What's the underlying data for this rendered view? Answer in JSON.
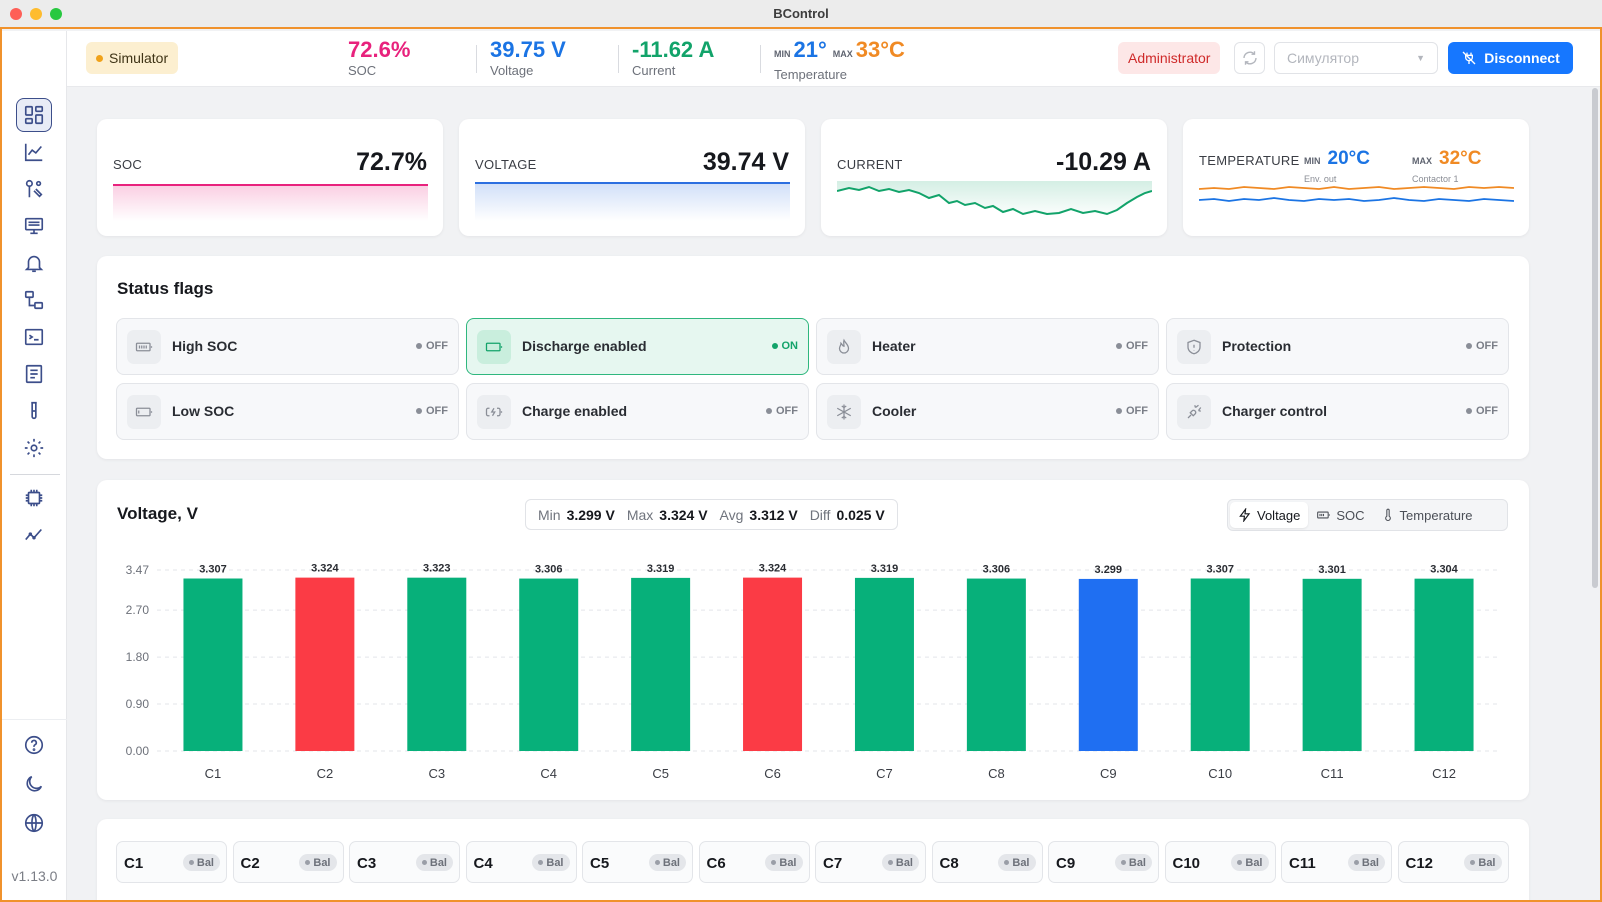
{
  "window": {
    "title": "BControl"
  },
  "sidebar": {
    "items": [
      {
        "icon": "dashboard-icon",
        "active": true
      },
      {
        "icon": "chart-line-icon"
      },
      {
        "icon": "tools-icon"
      },
      {
        "icon": "monitor-icon"
      },
      {
        "icon": "bell-icon"
      },
      {
        "icon": "network-icon"
      },
      {
        "icon": "terminal-icon"
      },
      {
        "icon": "document-icon"
      },
      {
        "icon": "test-tube-icon"
      },
      {
        "icon": "gear-icon"
      },
      {
        "icon": "chip-icon"
      },
      {
        "icon": "trend-icon"
      }
    ],
    "bottom": [
      {
        "icon": "help-icon"
      },
      {
        "icon": "moon-icon"
      },
      {
        "icon": "globe-icon"
      }
    ],
    "version": "v1.13.0"
  },
  "header": {
    "sim_badge": "Simulator",
    "soc": {
      "value": "72.6%",
      "label": "SOC",
      "color": "#e8227d"
    },
    "voltage": {
      "value": "39.75 V",
      "label": "Voltage",
      "color": "#1b74e4"
    },
    "current": {
      "value": "-11.62 A",
      "label": "Current",
      "color": "#12a36a"
    },
    "temperature": {
      "min_label": "MIN",
      "min_value": "21°",
      "max_label": "MAX",
      "max_value": "33°C",
      "label": "Temperature",
      "min_color": "#1b74e4",
      "max_color": "#f08a24"
    },
    "role": "Administrator",
    "port_placeholder": "Симулятор",
    "disconnect": "Disconnect"
  },
  "kpis": {
    "soc": {
      "label": "SOC",
      "value": "72.7%",
      "color": "#e8227d"
    },
    "voltage": {
      "label": "VOLTAGE",
      "value": "39.74 V",
      "color": "#2c6fe0"
    },
    "current": {
      "label": "CURRENT",
      "value": "-10.29 A",
      "color": "#12a36a"
    },
    "temperature": {
      "label": "TEMPERATURE",
      "min_label": "MIN",
      "min_value": "20°C",
      "min_sub": "Env. out",
      "max_label": "MAX",
      "max_value": "32°C",
      "max_sub": "Contactor 1"
    }
  },
  "status_flags": {
    "title": "Status flags",
    "items": [
      {
        "label": "High SOC",
        "state": "OFF",
        "on": false,
        "icon": "battery-full-icon"
      },
      {
        "label": "Discharge enabled",
        "state": "ON",
        "on": true,
        "icon": "battery-discharge-icon"
      },
      {
        "label": "Heater",
        "state": "OFF",
        "on": false,
        "icon": "flame-icon"
      },
      {
        "label": "Protection",
        "state": "OFF",
        "on": false,
        "icon": "shield-icon"
      },
      {
        "label": "Low SOC",
        "state": "OFF",
        "on": false,
        "icon": "battery-low-icon"
      },
      {
        "label": "Charge enabled",
        "state": "OFF",
        "on": false,
        "icon": "battery-charging-icon"
      },
      {
        "label": "Cooler",
        "state": "OFF",
        "on": false,
        "icon": "snowflake-icon"
      },
      {
        "label": "Charger control",
        "state": "OFF",
        "on": false,
        "icon": "plug-icon"
      }
    ]
  },
  "voltage_panel": {
    "title": "Voltage, V",
    "stats": {
      "min_label": "Min",
      "min": "3.299 V",
      "max_label": "Max",
      "max": "3.324 V",
      "avg_label": "Avg",
      "avg": "3.312 V",
      "diff_label": "Diff",
      "diff": "0.025 V"
    },
    "tabs": [
      {
        "label": "Voltage",
        "icon": "bolt-icon",
        "active": true
      },
      {
        "label": "SOC",
        "icon": "battery-icon"
      },
      {
        "label": "Temperature",
        "icon": "thermometer-icon"
      }
    ]
  },
  "chart_data": {
    "type": "bar",
    "categories": [
      "C1",
      "C2",
      "C3",
      "C4",
      "C5",
      "C6",
      "C7",
      "C8",
      "C9",
      "C10",
      "C11",
      "C12"
    ],
    "values": [
      3.307,
      3.324,
      3.323,
      3.306,
      3.319,
      3.324,
      3.319,
      3.306,
      3.299,
      3.307,
      3.301,
      3.304
    ],
    "value_labels": [
      "3.307",
      "3.324",
      "3.323",
      "3.306",
      "3.319",
      "3.324",
      "3.319",
      "3.306",
      "3.299",
      "3.307",
      "3.301",
      "3.304"
    ],
    "colors": [
      "#07b07a",
      "#fb3b45",
      "#07b07a",
      "#07b07a",
      "#07b07a",
      "#fb3b45",
      "#07b07a",
      "#07b07a",
      "#1f6ff2",
      "#07b07a",
      "#07b07a",
      "#07b07a"
    ],
    "yticks": [
      "3.47",
      "2.70",
      "1.80",
      "0.90",
      "0.00"
    ],
    "ytick_values": [
      3.47,
      2.7,
      1.8,
      0.9,
      0
    ],
    "ylim": [
      0,
      3.47
    ],
    "title": "Voltage, V",
    "grid": true
  },
  "cells": {
    "items": [
      {
        "name": "C1",
        "bal": "Bal"
      },
      {
        "name": "C2",
        "bal": "Bal"
      },
      {
        "name": "C3",
        "bal": "Bal"
      },
      {
        "name": "C4",
        "bal": "Bal"
      },
      {
        "name": "C5",
        "bal": "Bal"
      },
      {
        "name": "C6",
        "bal": "Bal"
      },
      {
        "name": "C7",
        "bal": "Bal"
      },
      {
        "name": "C8",
        "bal": "Bal"
      },
      {
        "name": "C9",
        "bal": "Bal"
      },
      {
        "name": "C10",
        "bal": "Bal"
      },
      {
        "name": "C11",
        "bal": "Bal"
      },
      {
        "name": "C12",
        "bal": "Bal"
      }
    ]
  }
}
